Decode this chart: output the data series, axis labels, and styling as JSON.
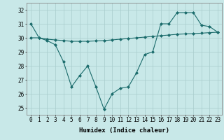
{
  "xlabel": "Humidex (Indice chaleur)",
  "ylabel": "",
  "background_color": "#c8e8e8",
  "grid_color": "#a8cccc",
  "line_color": "#1a6b6b",
  "x_values": [
    0,
    1,
    2,
    3,
    4,
    5,
    6,
    7,
    8,
    9,
    10,
    11,
    12,
    13,
    14,
    15,
    16,
    17,
    18,
    19,
    20,
    21,
    22,
    23
  ],
  "line1_y": [
    31.0,
    30.0,
    29.8,
    29.5,
    28.3,
    26.5,
    27.3,
    28.0,
    26.5,
    24.9,
    26.0,
    26.4,
    26.5,
    27.5,
    28.8,
    29.0,
    31.0,
    31.0,
    31.8,
    31.8,
    31.8,
    30.9,
    30.8,
    30.4
  ],
  "line2_y": [
    30.0,
    30.0,
    29.9,
    29.85,
    29.8,
    29.75,
    29.75,
    29.75,
    29.78,
    29.8,
    29.85,
    29.9,
    29.95,
    30.0,
    30.05,
    30.1,
    30.15,
    30.2,
    30.25,
    30.28,
    30.3,
    30.33,
    30.37,
    30.4
  ],
  "ylim": [
    24.5,
    32.5
  ],
  "yticks": [
    25,
    26,
    27,
    28,
    29,
    30,
    31,
    32
  ],
  "xlim": [
    -0.5,
    23.5
  ],
  "xticks": [
    0,
    1,
    2,
    3,
    4,
    5,
    6,
    7,
    8,
    9,
    10,
    11,
    12,
    13,
    14,
    15,
    16,
    17,
    18,
    19,
    20,
    21,
    22,
    23
  ],
  "marker": "D",
  "marker_size": 2,
  "line_width": 0.8,
  "font_size_label": 6.5,
  "font_size_tick": 5.5
}
